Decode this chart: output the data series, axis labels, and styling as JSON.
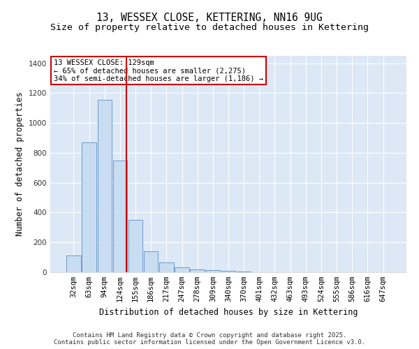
{
  "title_line1": "13, WESSEX CLOSE, KETTERING, NN16 9UG",
  "title_line2": "Size of property relative to detached houses in Kettering",
  "xlabel": "Distribution of detached houses by size in Kettering",
  "ylabel": "Number of detached properties",
  "categories": [
    "32sqm",
    "63sqm",
    "94sqm",
    "124sqm",
    "155sqm",
    "186sqm",
    "217sqm",
    "247sqm",
    "278sqm",
    "309sqm",
    "340sqm",
    "370sqm",
    "401sqm",
    "432sqm",
    "463sqm",
    "493sqm",
    "524sqm",
    "555sqm",
    "586sqm",
    "616sqm",
    "647sqm"
  ],
  "values": [
    110,
    870,
    1155,
    750,
    350,
    140,
    65,
    35,
    20,
    15,
    10,
    5,
    0,
    0,
    0,
    0,
    0,
    0,
    0,
    0,
    0
  ],
  "bar_color": "#c9ddf2",
  "bar_edgecolor": "#5a8fc4",
  "ref_line_color": "#cc0000",
  "ref_line_x": 3.42,
  "annotation_text": "13 WESSEX CLOSE: 129sqm\n← 65% of detached houses are smaller (2,275)\n34% of semi-detached houses are larger (1,186) →",
  "annotation_box_edgecolor": "#cc0000",
  "ylim": [
    0,
    1450
  ],
  "yticks": [
    0,
    200,
    400,
    600,
    800,
    1000,
    1200,
    1400
  ],
  "background_color": "#dce8f5",
  "grid_color": "#ffffff",
  "footer_line1": "Contains HM Land Registry data © Crown copyright and database right 2025.",
  "footer_line2": "Contains public sector information licensed under the Open Government Licence v3.0.",
  "title_fontsize": 10.5,
  "subtitle_fontsize": 9.5,
  "axis_label_fontsize": 8.5,
  "tick_fontsize": 7.5,
  "annotation_fontsize": 7.5,
  "footer_fontsize": 6.5
}
